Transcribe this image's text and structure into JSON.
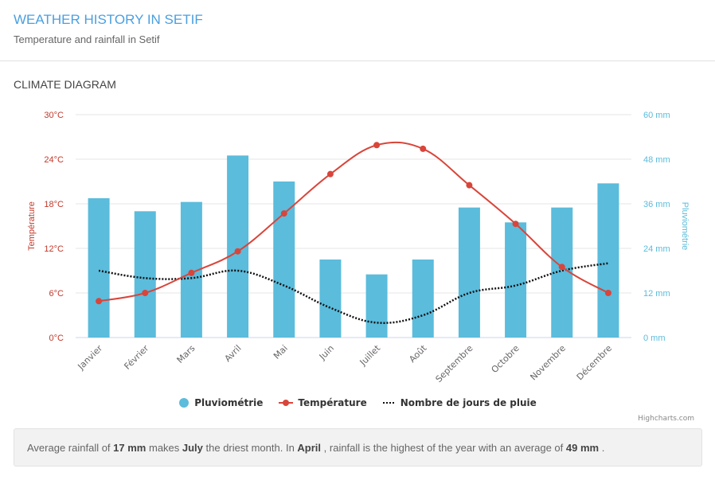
{
  "header": {
    "title": "WEATHER HISTORY IN SETIF",
    "subtitle": "Temperature and rainfall in Setif"
  },
  "section": {
    "title": "CLIMATE DIAGRAM"
  },
  "colors": {
    "title": "#4a9fe0",
    "rain_bars": "#5bbcdc",
    "temperature": "#d9453a",
    "rain_days": "#111111",
    "temp_axis": "#c0392b",
    "rain_axis": "#5bbcdc"
  },
  "chart_data": {
    "type": "bar+line",
    "title": "",
    "categories": [
      "Janvier",
      "Février",
      "Mars",
      "Avril",
      "Mai",
      "Juin",
      "Juillet",
      "Août",
      "Septembre",
      "Octobre",
      "Novembre",
      "Décembre"
    ],
    "series": [
      {
        "name": "Pluviométrie",
        "type": "bar",
        "axis": "right",
        "unit": "mm",
        "values": [
          37.5,
          34,
          36.5,
          49,
          42,
          21,
          17,
          21,
          35,
          31,
          35,
          41.5
        ]
      },
      {
        "name": "Température",
        "type": "line",
        "axis": "left",
        "unit": "°C",
        "values": [
          4.9,
          6.0,
          8.7,
          11.6,
          16.7,
          22.0,
          25.9,
          25.4,
          20.5,
          15.3,
          9.5,
          6.0
        ]
      },
      {
        "name": "Nombre de jours de pluie",
        "type": "line-dotted",
        "axis": "hidden",
        "unit": "days",
        "values": [
          9,
          8,
          8,
          9,
          7,
          4,
          2,
          3,
          6,
          7,
          9,
          10
        ]
      }
    ],
    "left_axis": {
      "label": "Température",
      "ticks": [
        "0°C",
        "6°C",
        "12°C",
        "18°C",
        "24°C",
        "30°C"
      ],
      "range": [
        0,
        30
      ]
    },
    "right_axis": {
      "label": "Pluviométrie",
      "ticks": [
        "0 mm",
        "12 mm",
        "24 mm",
        "36 mm",
        "48 mm",
        "60 mm"
      ],
      "range": [
        0,
        60
      ]
    },
    "hidden_axis_range": [
      0,
      30
    ],
    "grid": true,
    "legend": "bottom-center"
  },
  "legend": {
    "items": [
      {
        "label": "Pluviométrie"
      },
      {
        "label": "Température"
      },
      {
        "label": "Nombre de jours de pluie"
      }
    ]
  },
  "credits": "Highcharts.com",
  "summary": {
    "t1": "Average rainfall of ",
    "b1": "17 mm",
    "t2": " makes ",
    "b2": "July",
    "t3": " the driest month. In ",
    "b3": "April",
    "t4": " , rainfall is the highest of the year with an average of ",
    "b4": "49 mm",
    "t5": " ."
  }
}
